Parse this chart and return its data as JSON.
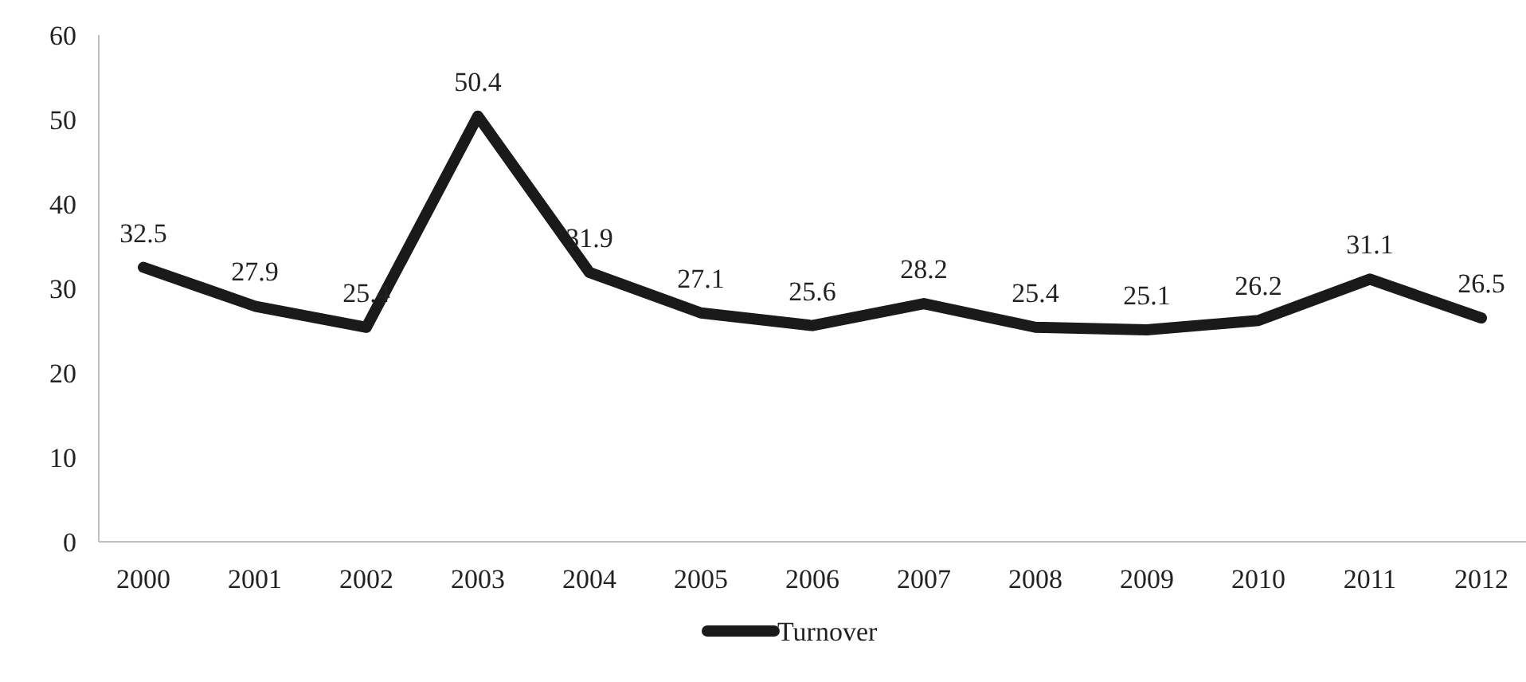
{
  "chart_data": {
    "type": "line",
    "categories": [
      "2000",
      "2001",
      "2002",
      "2003",
      "2004",
      "2005",
      "2006",
      "2007",
      "2008",
      "2009",
      "2010",
      "2011",
      "2012"
    ],
    "series": [
      {
        "name": "Turnover",
        "color": "#1a1a1a",
        "values": [
          32.5,
          27.9,
          25.4,
          50.4,
          31.9,
          27.1,
          25.6,
          28.2,
          25.4,
          25.1,
          26.2,
          31.1,
          26.5
        ]
      }
    ],
    "ylim": [
      0,
      60
    ],
    "yticks": [
      0,
      10,
      20,
      30,
      40,
      50,
      60
    ],
    "grid": false,
    "legend": "bottom",
    "data_labels": true,
    "marker": "none",
    "line_style": "solid"
  }
}
